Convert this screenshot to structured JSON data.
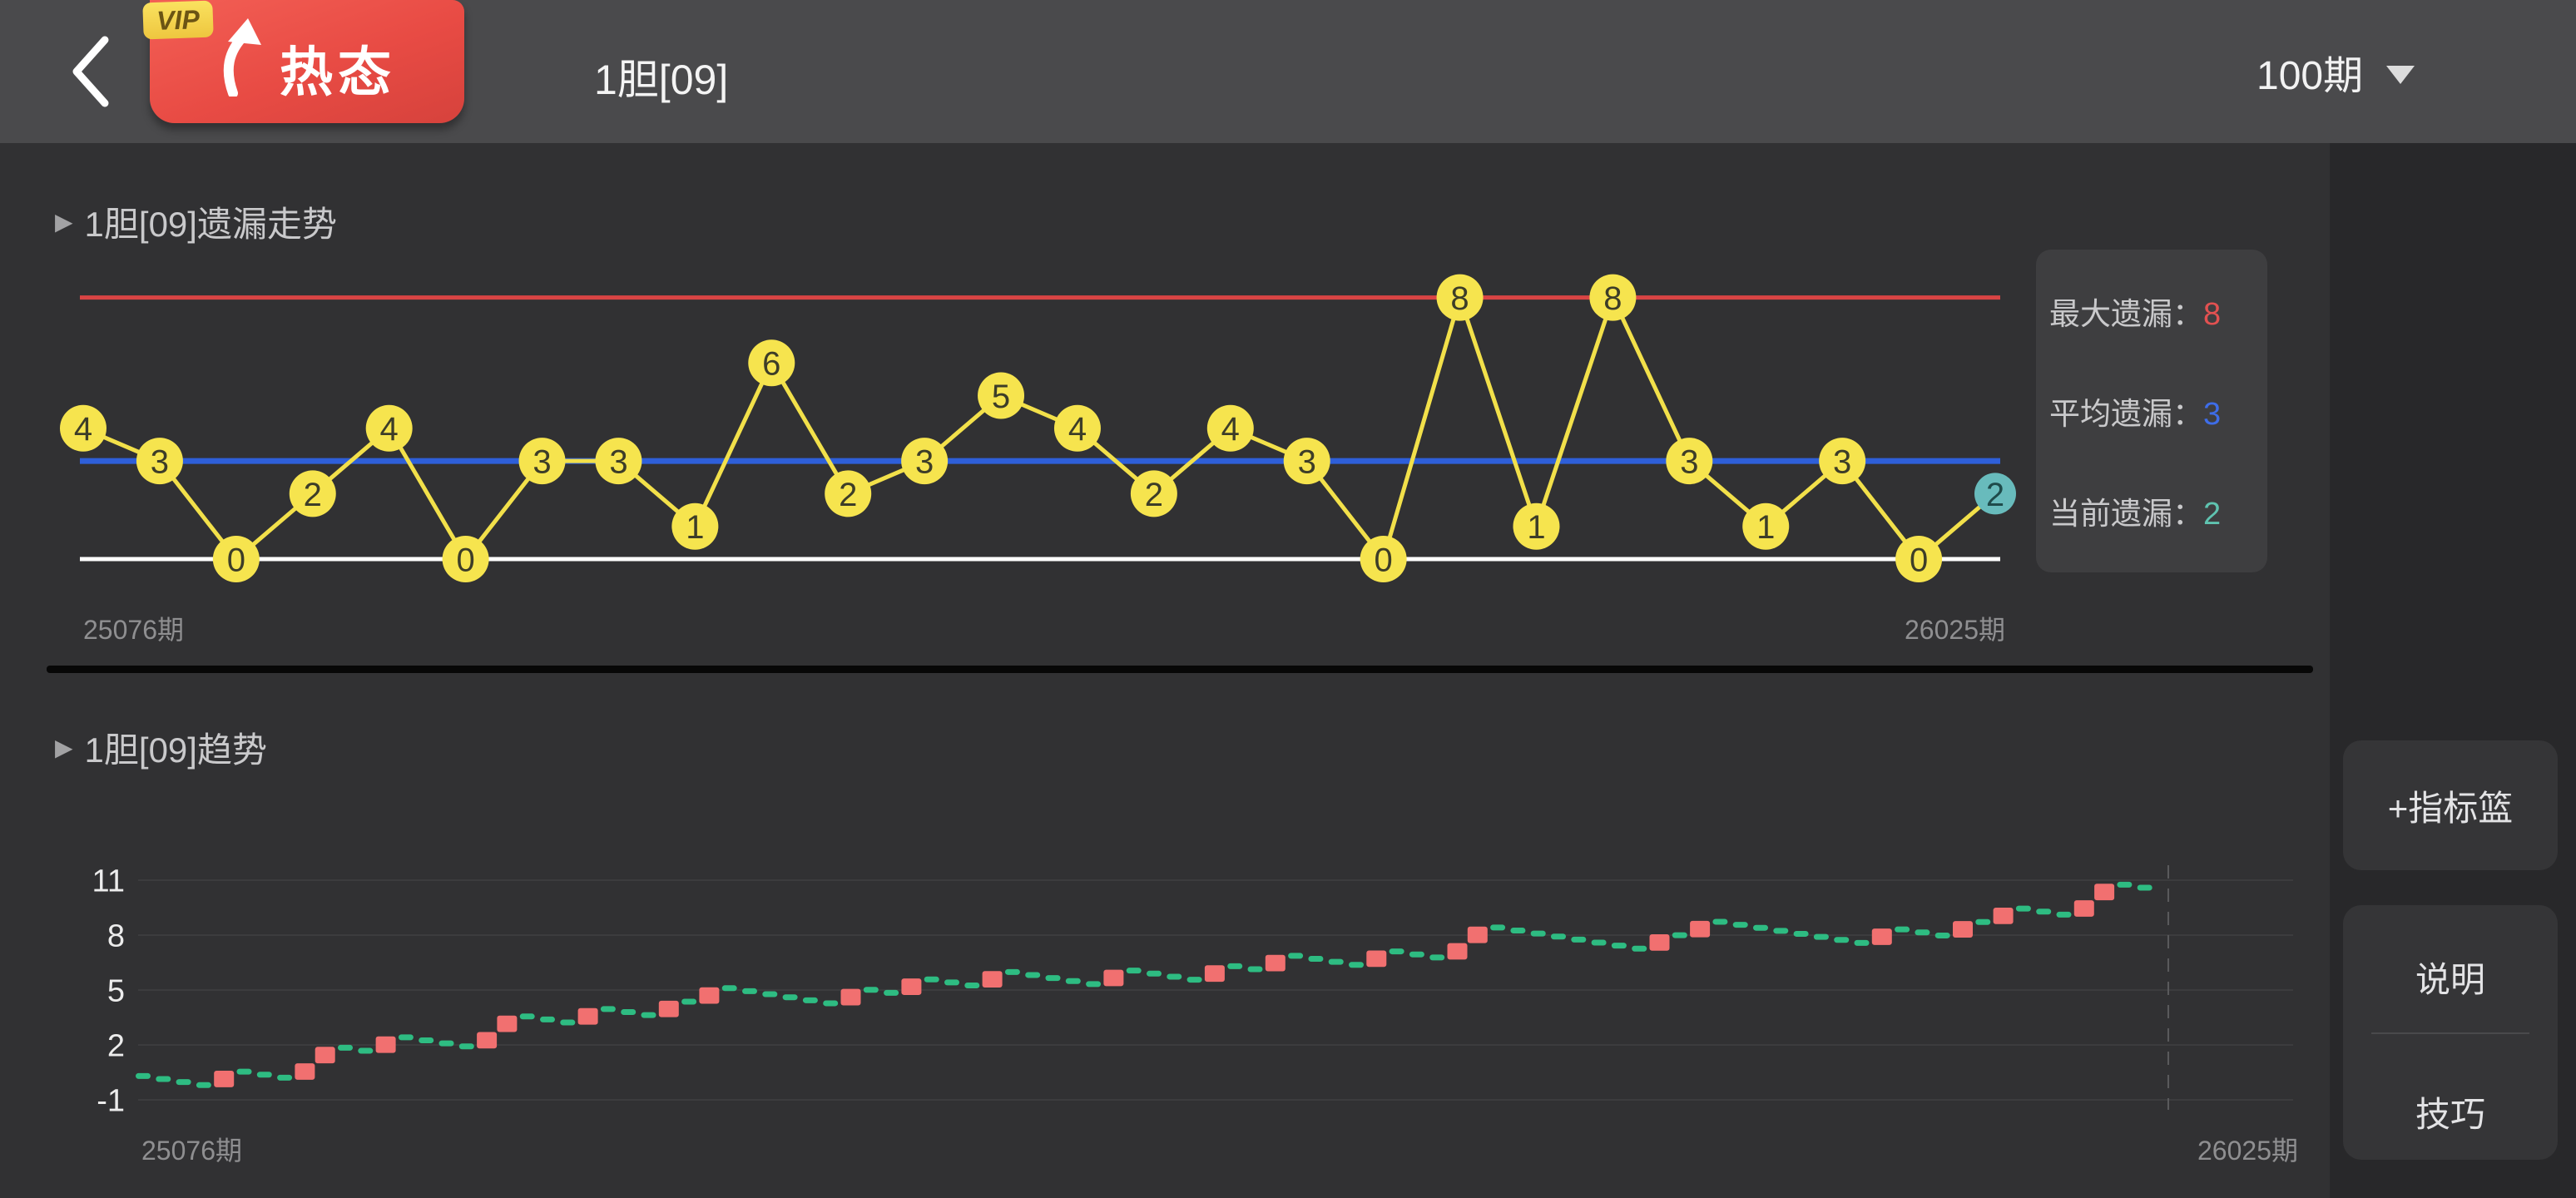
{
  "topbar": {
    "title": "1胆[09]",
    "period": "100期",
    "badge_vip": "VIP",
    "badge_label": "热态"
  },
  "section1": {
    "title": "1胆[09]遗漏走势",
    "x_start": "25076期",
    "x_end": "26025期"
  },
  "section2": {
    "title": "1胆[09]趋势",
    "x_start": "25076期",
    "x_end": "26025期"
  },
  "stats": {
    "rows": [
      {
        "label": "最大遗漏：",
        "value": "8",
        "color": "#e25151"
      },
      {
        "label": "平均遗漏：",
        "value": "3",
        "color": "#3e6de8"
      },
      {
        "label": "当前遗漏：",
        "value": "2",
        "color": "#5fc3b0"
      }
    ]
  },
  "sidebar": {
    "buttons": [
      "+指标篮",
      "说明",
      "技巧"
    ]
  },
  "colors": {
    "topbar_bg": "#4a4a4c",
    "content_bg": "#313133",
    "sidebar_bg": "#28282a",
    "max_line": "#d94444",
    "avg_line": "#2e5fd9",
    "base_line": "#ffffff",
    "point_fill": "#f6e44e",
    "current_point_fill": "#68bbbc",
    "series_line": "#f2e04a",
    "miss_dash": "#2ebc82",
    "hit_bar": "#f17070",
    "gridline": "#3c3c3e"
  },
  "chart_data": [
    {
      "type": "line",
      "name": "omission-trend",
      "title": "1胆[09]遗漏走势",
      "values": [
        4,
        3,
        0,
        2,
        4,
        0,
        3,
        3,
        1,
        6,
        2,
        3,
        5,
        4,
        2,
        4,
        3,
        0,
        8,
        1,
        8,
        3,
        1,
        3,
        0,
        2
      ],
      "current_index": 25,
      "max_line": 8,
      "avg_line": 3,
      "base_line": 0,
      "ylim": [
        0,
        9
      ],
      "x_start_label": "25076期",
      "x_end_label": "26025期",
      "legend": {
        "max": "最大遗漏：8",
        "avg": "平均遗漏：3",
        "current": "当前遗漏：2"
      }
    },
    {
      "type": "step-candle",
      "name": "trend",
      "title": "1胆[09]趋势",
      "derived_from_series": 0,
      "note": "for each omission value v: v miss-dashes stepping down, then one rising hit-bar; last group (current) has no bar",
      "start_level": 0.3,
      "miss_step": 0.165,
      "hit_rise": 0.9,
      "bar_overlap": 0.05,
      "yticks": [
        11,
        8,
        5,
        2,
        -1
      ],
      "ylim": [
        -2,
        12
      ],
      "grid": true,
      "x_start_label": "25076期",
      "x_end_label": "26025期"
    }
  ]
}
